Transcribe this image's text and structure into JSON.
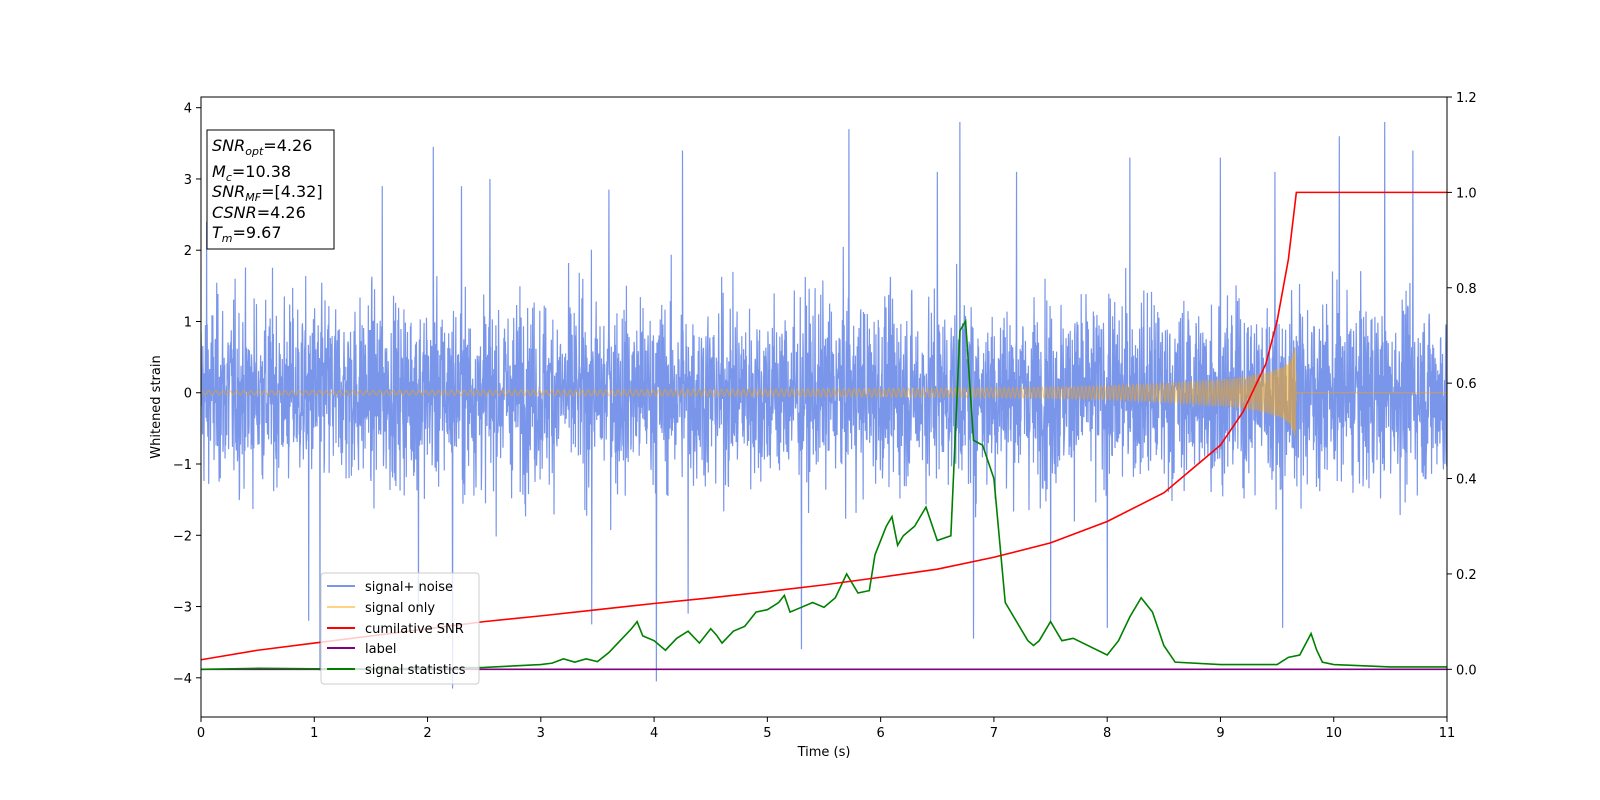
{
  "chart_data": {
    "type": "line",
    "xlabel": "Time (s)",
    "ylabel": "Whitened strain",
    "xlim": [
      0,
      11
    ],
    "ylim_left": [
      -4.55,
      4.15
    ],
    "ylim_right": [
      -0.1,
      1.2
    ],
    "x_ticks": [
      0,
      1,
      2,
      3,
      4,
      5,
      6,
      7,
      8,
      9,
      10,
      11
    ],
    "x_tick_labels": [
      "0",
      "1",
      "2",
      "3",
      "4",
      "5",
      "6",
      "7",
      "8",
      "9",
      "10",
      "11"
    ],
    "y_left_ticks": [
      -4,
      -3,
      -2,
      -1,
      0,
      1,
      2,
      3,
      4
    ],
    "y_left_tick_labels": [
      "−4",
      "−3",
      "−2",
      "−1",
      "0",
      "1",
      "2",
      "3",
      "4"
    ],
    "y_right_ticks": [
      0.0,
      0.2,
      0.4,
      0.6,
      0.8,
      1.0,
      1.2
    ],
    "y_right_tick_labels": [
      "0.0",
      "0.2",
      "0.4",
      "0.6",
      "0.8",
      "1.0",
      "1.2"
    ],
    "legend_position": "lower-left",
    "grid": false,
    "annotation": {
      "lines": [
        {
          "base": "SNR",
          "sub": "opt",
          "value": "=4.26"
        },
        {
          "base": "M",
          "sub": "c",
          "value": "=10.38"
        },
        {
          "base": "SNR",
          "sub": "MF",
          "value": "=[4.32]"
        },
        {
          "base": "CSNR",
          "sub": "",
          "value": "=4.26"
        },
        {
          "base": "T",
          "sub": "m",
          "value": "=9.67"
        }
      ]
    },
    "series": [
      {
        "name": "signal+ noise",
        "axis": "left",
        "color": "#4169e1",
        "opacity": 0.7,
        "description": "dense whitened noise spanning roughly -2.5 to 2.6 with spikes to about -4.1 and 3.8",
        "spike_peaks": [
          [
            0.05,
            2.4
          ],
          [
            0.95,
            -3.2
          ],
          [
            1.05,
            -3.9
          ],
          [
            1.6,
            2.9
          ],
          [
            1.92,
            -3.1
          ],
          [
            2.05,
            3.45
          ],
          [
            2.22,
            -4.15
          ],
          [
            2.3,
            2.9
          ],
          [
            2.55,
            3.0
          ],
          [
            3.45,
            -3.25
          ],
          [
            3.6,
            2.85
          ],
          [
            4.02,
            -4.05
          ],
          [
            4.25,
            3.4
          ],
          [
            4.3,
            -3.1
          ],
          [
            5.3,
            -3.6
          ],
          [
            5.72,
            3.7
          ],
          [
            6.5,
            3.1
          ],
          [
            6.7,
            3.8
          ],
          [
            6.82,
            -3.45
          ],
          [
            7.2,
            3.1
          ],
          [
            7.5,
            -3.2
          ],
          [
            8.0,
            -3.3
          ],
          [
            8.2,
            3.3
          ],
          [
            9.0,
            3.3
          ],
          [
            9.48,
            3.1
          ],
          [
            9.55,
            -3.3
          ],
          [
            10.05,
            3.6
          ],
          [
            10.45,
            3.8
          ],
          [
            10.7,
            3.4
          ]
        ],
        "noise_bounds": [
          -2.6,
          2.6
        ]
      },
      {
        "name": "signal only",
        "axis": "left",
        "color": "#ffa500",
        "opacity": 0.5,
        "envelope_x": [
          0,
          1,
          2,
          3,
          4,
          5,
          6,
          7,
          7.5,
          8,
          8.5,
          9,
          9.2,
          9.4,
          9.55,
          9.62,
          9.66,
          9.67,
          11
        ],
        "envelope_y": [
          0.03,
          0.03,
          0.035,
          0.04,
          0.045,
          0.05,
          0.06,
          0.07,
          0.08,
          0.1,
          0.13,
          0.18,
          0.22,
          0.28,
          0.36,
          0.45,
          0.65,
          0.0,
          0.0
        ]
      },
      {
        "name": "cumilative SNR",
        "axis": "right",
        "color": "#ff0000",
        "x": [
          0,
          0.5,
          1,
          1.5,
          2,
          2.5,
          3,
          3.5,
          4,
          4.5,
          5,
          5.5,
          6,
          6.5,
          7,
          7.5,
          8,
          8.5,
          9,
          9.2,
          9.4,
          9.5,
          9.6,
          9.67,
          11
        ],
        "y": [
          0.02,
          0.04,
          0.055,
          0.07,
          0.085,
          0.1,
          0.112,
          0.125,
          0.138,
          0.15,
          0.163,
          0.177,
          0.193,
          0.21,
          0.235,
          0.265,
          0.31,
          0.37,
          0.47,
          0.54,
          0.64,
          0.73,
          0.86,
          1.0,
          1.0
        ]
      },
      {
        "name": "label",
        "axis": "right",
        "color": "#800080",
        "x": [
          0,
          11
        ],
        "y": [
          0.0,
          0.0
        ]
      },
      {
        "name": "signal statistics",
        "axis": "right",
        "color": "#008000",
        "x": [
          0,
          0.5,
          1,
          1.5,
          2,
          2.5,
          3,
          3.1,
          3.2,
          3.3,
          3.4,
          3.5,
          3.6,
          3.7,
          3.8,
          3.85,
          3.9,
          4.0,
          4.1,
          4.2,
          4.3,
          4.4,
          4.5,
          4.55,
          4.6,
          4.7,
          4.8,
          4.9,
          5.0,
          5.1,
          5.15,
          5.2,
          5.3,
          5.4,
          5.5,
          5.6,
          5.7,
          5.8,
          5.9,
          5.95,
          6.0,
          6.05,
          6.1,
          6.15,
          6.2,
          6.3,
          6.4,
          6.5,
          6.62,
          6.7,
          6.75,
          6.82,
          6.9,
          7.0,
          7.1,
          7.2,
          7.3,
          7.35,
          7.4,
          7.5,
          7.6,
          7.7,
          8.0,
          8.1,
          8.2,
          8.3,
          8.4,
          8.5,
          8.6,
          9.0,
          9.5,
          9.6,
          9.7,
          9.8,
          9.85,
          9.9,
          10.0,
          10.5,
          11
        ],
        "y": [
          0.0,
          0.002,
          0.001,
          0.001,
          0.002,
          0.004,
          0.01,
          0.013,
          0.022,
          0.015,
          0.022,
          0.016,
          0.035,
          0.06,
          0.085,
          0.1,
          0.07,
          0.06,
          0.04,
          0.065,
          0.08,
          0.055,
          0.085,
          0.072,
          0.055,
          0.08,
          0.09,
          0.12,
          0.125,
          0.14,
          0.155,
          0.12,
          0.13,
          0.14,
          0.13,
          0.15,
          0.2,
          0.16,
          0.165,
          0.24,
          0.27,
          0.3,
          0.32,
          0.26,
          0.28,
          0.3,
          0.34,
          0.27,
          0.28,
          0.71,
          0.73,
          0.48,
          0.47,
          0.4,
          0.14,
          0.1,
          0.06,
          0.05,
          0.06,
          0.1,
          0.06,
          0.065,
          0.03,
          0.06,
          0.11,
          0.15,
          0.12,
          0.05,
          0.015,
          0.01,
          0.01,
          0.025,
          0.03,
          0.075,
          0.04,
          0.015,
          0.01,
          0.005,
          0.005
        ]
      }
    ]
  }
}
